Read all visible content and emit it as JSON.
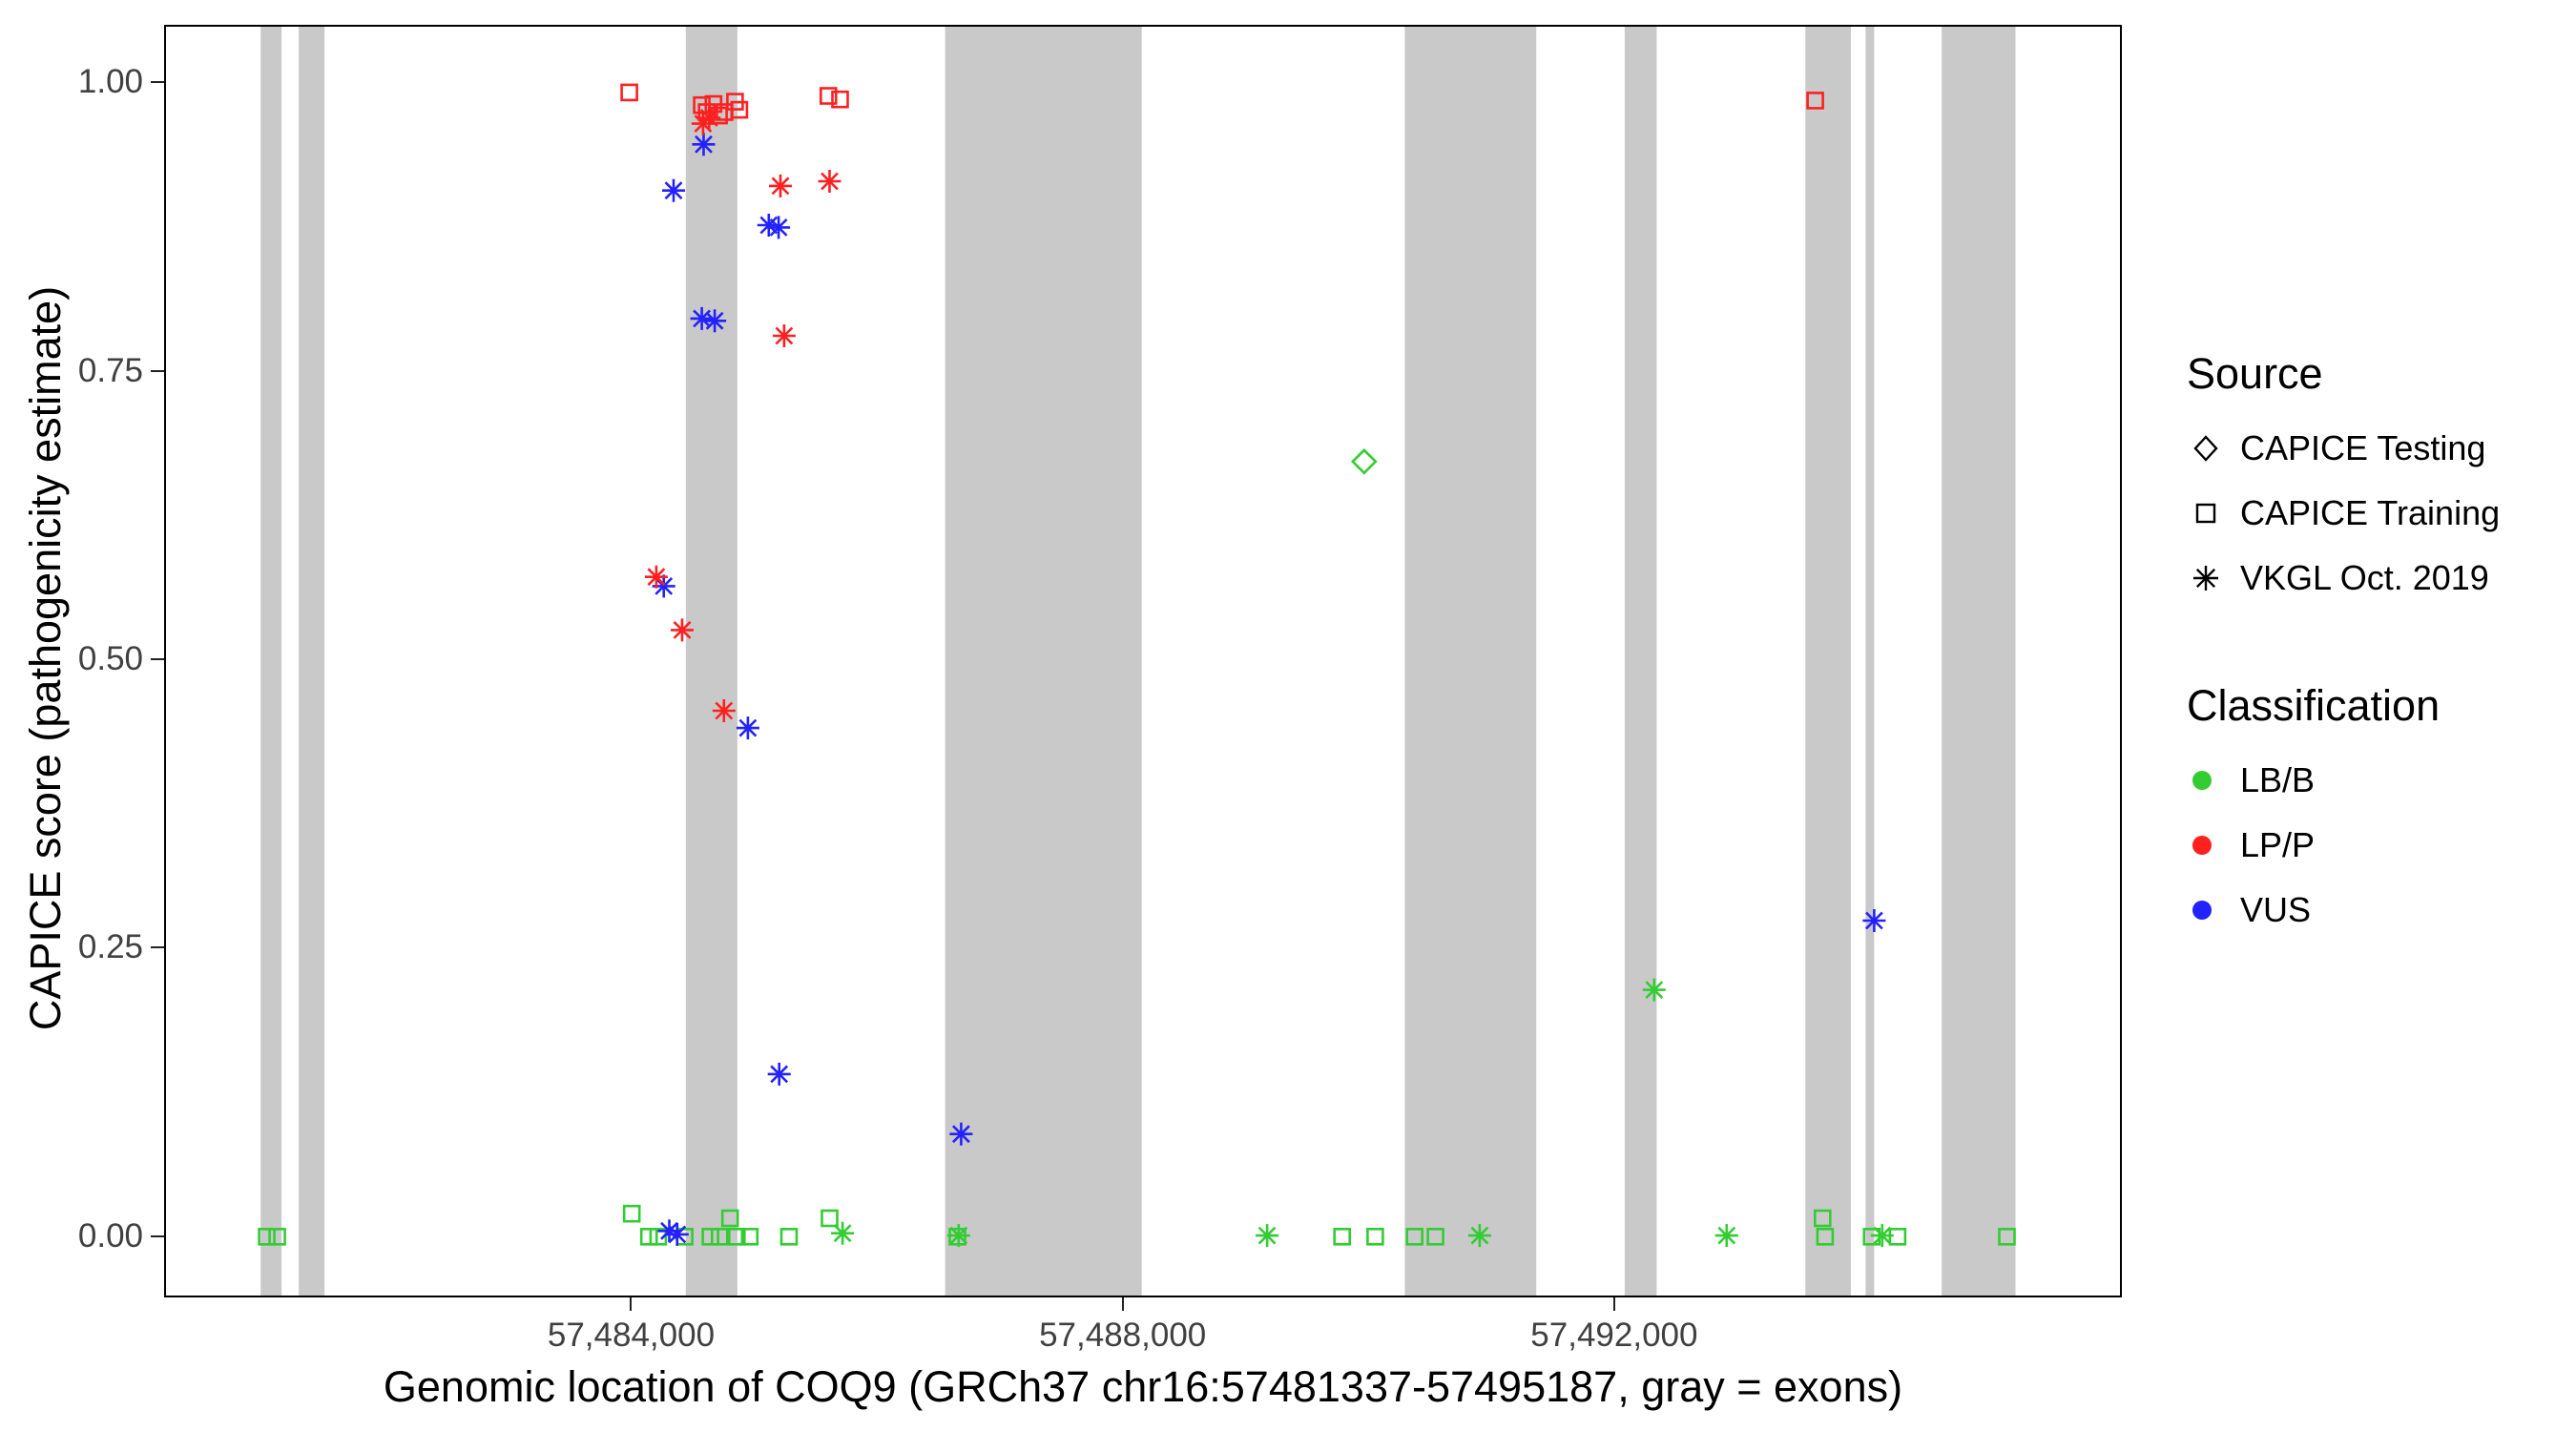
{
  "axes": {
    "x_title": "Genomic location of COQ9 (GRCh37 chr16:57481337-57495187, gray = exons)",
    "y_title": "CAPICE score (pathogenicity estimate)"
  },
  "legend": {
    "source": {
      "title": "Source",
      "items": [
        {
          "label": "CAPICE Testing",
          "shape": "diamond"
        },
        {
          "label": "CAPICE Training",
          "shape": "square"
        },
        {
          "label": "VKGL Oct. 2019",
          "shape": "asterisk"
        }
      ]
    },
    "classification": {
      "title": "Classification",
      "items": [
        {
          "label": "LB/B",
          "class": "LB/B"
        },
        {
          "label": "LP/P",
          "class": "LP/P"
        },
        {
          "label": "VUS",
          "class": "VUS"
        }
      ]
    }
  },
  "chart_data": {
    "type": "scatter",
    "title": "",
    "xlabel": "Genomic location of COQ9 (GRCh37 chr16:57481337-57495187, gray = exons)",
    "ylabel": "CAPICE score (pathogenicity estimate)",
    "x_domain": [
      57480200,
      57496100
    ],
    "y_domain": [
      -0.05,
      1.05
    ],
    "x_ticks": [
      {
        "value": 57484000,
        "label": "57,484,000"
      },
      {
        "value": 57488000,
        "label": "57,488,000"
      },
      {
        "value": 57492000,
        "label": "57,492,000"
      }
    ],
    "y_ticks": [
      {
        "value": 0.0,
        "label": "0.00"
      },
      {
        "value": 0.25,
        "label": "0.25"
      },
      {
        "value": 0.5,
        "label": "0.50"
      },
      {
        "value": 0.75,
        "label": "0.75"
      },
      {
        "value": 1.0,
        "label": "1.00"
      }
    ],
    "colors": {
      "exon": "#C9C9C9",
      "LB/B": "#33CC33",
      "LP/P": "#FF2020",
      "VUS": "#2222FF"
    },
    "shapes": {
      "CAPICE Testing": "diamond",
      "CAPICE Training": "square",
      "VKGL Oct. 2019": "asterisk"
    },
    "exons": [
      [
        57480970,
        57481140
      ],
      [
        57481280,
        57481490
      ],
      [
        57484430,
        57484850
      ],
      [
        57486540,
        57488140
      ],
      [
        57490280,
        57491350
      ],
      [
        57492070,
        57492330
      ],
      [
        57493540,
        57493910
      ],
      [
        57494030,
        57494100
      ],
      [
        57494650,
        57495250
      ]
    ],
    "points": [
      {
        "x": 57481020,
        "y": 0.001,
        "source": "CAPICE Training",
        "class": "LB/B"
      },
      {
        "x": 57481105,
        "y": 0.001,
        "source": "CAPICE Training",
        "class": "LB/B"
      },
      {
        "x": 57483990,
        "y": 0.021,
        "source": "CAPICE Training",
        "class": "LB/B"
      },
      {
        "x": 57484130,
        "y": 0.001,
        "source": "CAPICE Training",
        "class": "LB/B"
      },
      {
        "x": 57484205,
        "y": 0.001,
        "source": "CAPICE Training",
        "class": "LB/B"
      },
      {
        "x": 57484420,
        "y": 0.001,
        "source": "CAPICE Training",
        "class": "LB/B"
      },
      {
        "x": 57484630,
        "y": 0.001,
        "source": "CAPICE Training",
        "class": "LB/B"
      },
      {
        "x": 57484705,
        "y": 0.001,
        "source": "CAPICE Training",
        "class": "LB/B"
      },
      {
        "x": 57484790,
        "y": 0.017,
        "source": "CAPICE Training",
        "class": "LB/B"
      },
      {
        "x": 57484845,
        "y": 0.001,
        "source": "CAPICE Training",
        "class": "LB/B"
      },
      {
        "x": 57484950,
        "y": 0.001,
        "source": "CAPICE Training",
        "class": "LB/B"
      },
      {
        "x": 57485270,
        "y": 0.001,
        "source": "CAPICE Training",
        "class": "LB/B"
      },
      {
        "x": 57485600,
        "y": 0.017,
        "source": "CAPICE Training",
        "class": "LB/B"
      },
      {
        "x": 57486640,
        "y": 0.001,
        "source": "CAPICE Training",
        "class": "LB/B"
      },
      {
        "x": 57489770,
        "y": 0.001,
        "source": "CAPICE Training",
        "class": "LB/B"
      },
      {
        "x": 57490040,
        "y": 0.001,
        "source": "CAPICE Training",
        "class": "LB/B"
      },
      {
        "x": 57490360,
        "y": 0.001,
        "source": "CAPICE Training",
        "class": "LB/B"
      },
      {
        "x": 57490530,
        "y": 0.001,
        "source": "CAPICE Training",
        "class": "LB/B"
      },
      {
        "x": 57493680,
        "y": 0.017,
        "source": "CAPICE Training",
        "class": "LB/B"
      },
      {
        "x": 57493700,
        "y": 0.001,
        "source": "CAPICE Training",
        "class": "LB/B"
      },
      {
        "x": 57494080,
        "y": 0.001,
        "source": "CAPICE Training",
        "class": "LB/B"
      },
      {
        "x": 57494290,
        "y": 0.001,
        "source": "CAPICE Training",
        "class": "LB/B"
      },
      {
        "x": 57495180,
        "y": 0.001,
        "source": "CAPICE Training",
        "class": "LB/B"
      },
      {
        "x": 57485705,
        "y": 0.004,
        "source": "VKGL Oct. 2019",
        "class": "LB/B"
      },
      {
        "x": 57486650,
        "y": 0.002,
        "source": "VKGL Oct. 2019",
        "class": "LB/B"
      },
      {
        "x": 57489160,
        "y": 0.002,
        "source": "VKGL Oct. 2019",
        "class": "LB/B"
      },
      {
        "x": 57490890,
        "y": 0.002,
        "source": "VKGL Oct. 2019",
        "class": "LB/B"
      },
      {
        "x": 57492900,
        "y": 0.002,
        "source": "VKGL Oct. 2019",
        "class": "LB/B"
      },
      {
        "x": 57494165,
        "y": 0.002,
        "source": "VKGL Oct. 2019",
        "class": "LB/B"
      },
      {
        "x": 57492310,
        "y": 0.215,
        "source": "VKGL Oct. 2019",
        "class": "LB/B"
      },
      {
        "x": 57489950,
        "y": 0.673,
        "source": "CAPICE Testing",
        "class": "LB/B"
      },
      {
        "x": 57484295,
        "y": 0.006,
        "source": "VKGL Oct. 2019",
        "class": "VUS"
      },
      {
        "x": 57484360,
        "y": 0.003,
        "source": "VKGL Oct. 2019",
        "class": "VUS"
      },
      {
        "x": 57486670,
        "y": 0.09,
        "source": "VKGL Oct. 2019",
        "class": "VUS"
      },
      {
        "x": 57485190,
        "y": 0.142,
        "source": "VKGL Oct. 2019",
        "class": "VUS"
      },
      {
        "x": 57494100,
        "y": 0.275,
        "source": "VKGL Oct. 2019",
        "class": "VUS"
      },
      {
        "x": 57484935,
        "y": 0.442,
        "source": "VKGL Oct. 2019",
        "class": "VUS"
      },
      {
        "x": 57484250,
        "y": 0.565,
        "source": "VKGL Oct. 2019",
        "class": "VUS"
      },
      {
        "x": 57484560,
        "y": 0.797,
        "source": "VKGL Oct. 2019",
        "class": "VUS"
      },
      {
        "x": 57484665,
        "y": 0.795,
        "source": "VKGL Oct. 2019",
        "class": "VUS"
      },
      {
        "x": 57485105,
        "y": 0.878,
        "source": "VKGL Oct. 2019",
        "class": "VUS"
      },
      {
        "x": 57485185,
        "y": 0.876,
        "source": "VKGL Oct. 2019",
        "class": "VUS"
      },
      {
        "x": 57484330,
        "y": 0.908,
        "source": "VKGL Oct. 2019",
        "class": "VUS"
      },
      {
        "x": 57484575,
        "y": 0.948,
        "source": "VKGL Oct. 2019",
        "class": "VUS"
      },
      {
        "x": 57484740,
        "y": 0.457,
        "source": "VKGL Oct. 2019",
        "class": "LP/P"
      },
      {
        "x": 57484400,
        "y": 0.527,
        "source": "VKGL Oct. 2019",
        "class": "LP/P"
      },
      {
        "x": 57484190,
        "y": 0.573,
        "source": "VKGL Oct. 2019",
        "class": "LP/P"
      },
      {
        "x": 57485230,
        "y": 0.782,
        "source": "VKGL Oct. 2019",
        "class": "LP/P"
      },
      {
        "x": 57485200,
        "y": 0.912,
        "source": "VKGL Oct. 2019",
        "class": "LP/P"
      },
      {
        "x": 57485600,
        "y": 0.916,
        "source": "VKGL Oct. 2019",
        "class": "LP/P"
      },
      {
        "x": 57484570,
        "y": 0.966,
        "source": "VKGL Oct. 2019",
        "class": "LP/P"
      },
      {
        "x": 57484620,
        "y": 0.971,
        "source": "VKGL Oct. 2019",
        "class": "LP/P"
      },
      {
        "x": 57483970,
        "y": 0.993,
        "source": "CAPICE Training",
        "class": "LP/P"
      },
      {
        "x": 57484560,
        "y": 0.982,
        "source": "CAPICE Training",
        "class": "LP/P"
      },
      {
        "x": 57484600,
        "y": 0.976,
        "source": "CAPICE Training",
        "class": "LP/P"
      },
      {
        "x": 57484655,
        "y": 0.983,
        "source": "CAPICE Training",
        "class": "LP/P"
      },
      {
        "x": 57484700,
        "y": 0.973,
        "source": "CAPICE Training",
        "class": "LP/P"
      },
      {
        "x": 57484745,
        "y": 0.976,
        "source": "CAPICE Training",
        "class": "LP/P"
      },
      {
        "x": 57484830,
        "y": 0.985,
        "source": "CAPICE Training",
        "class": "LP/P"
      },
      {
        "x": 57484865,
        "y": 0.978,
        "source": "CAPICE Training",
        "class": "LP/P"
      },
      {
        "x": 57485590,
        "y": 0.99,
        "source": "CAPICE Training",
        "class": "LP/P"
      },
      {
        "x": 57485685,
        "y": 0.987,
        "source": "CAPICE Training",
        "class": "LP/P"
      },
      {
        "x": 57493620,
        "y": 0.986,
        "source": "CAPICE Training",
        "class": "LP/P"
      }
    ]
  }
}
